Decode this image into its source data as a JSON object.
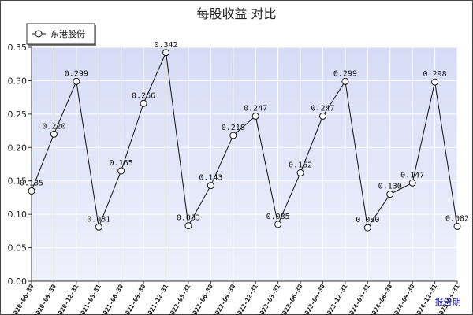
{
  "chart_data": {
    "type": "line",
    "title": "每股收益  对比",
    "xlabel": "报告期",
    "ylabel": "",
    "ylim": [
      0,
      0.35
    ],
    "yticks": [
      "0.00",
      "0.05",
      "0.10",
      "0.15",
      "0.20",
      "0.25",
      "0.30",
      "0.35"
    ],
    "grid": true,
    "legend_position": "top-left",
    "categories": [
      "2020-06-30",
      "2020-09-30",
      "2020-12-31",
      "2021-03-31",
      "2021-06-30",
      "2021-09-30",
      "2021-12-31",
      "2022-03-31",
      "2022-06-30",
      "2022-09-30",
      "2022-12-31",
      "2023-03-31",
      "2023-06-30",
      "2023-09-30",
      "2023-12-31",
      "2024-03-31",
      "2024-06-30",
      "2024-09-30",
      "2024-12-31",
      "2025-03-31"
    ],
    "series": [
      {
        "name": "东港股份",
        "values": [
          0.135,
          0.22,
          0.299,
          0.081,
          0.165,
          0.266,
          0.342,
          0.083,
          0.143,
          0.218,
          0.247,
          0.085,
          0.162,
          0.247,
          0.299,
          0.08,
          0.13,
          0.147,
          0.298,
          0.082
        ],
        "labels": [
          "0.135",
          "0.220",
          "0.299",
          "0.081",
          "0.165",
          "0.266",
          "0.342",
          "0.083",
          "0.143",
          "0.218",
          "0.247",
          "0.085",
          "0.162",
          "0.247",
          "0.299",
          "0.080",
          "0.130",
          "0.147",
          "0.298",
          "0.082"
        ]
      }
    ],
    "colors": {
      "plot_bg": "#dde3f7",
      "line": "#111111",
      "grid": "#ffffff"
    }
  }
}
